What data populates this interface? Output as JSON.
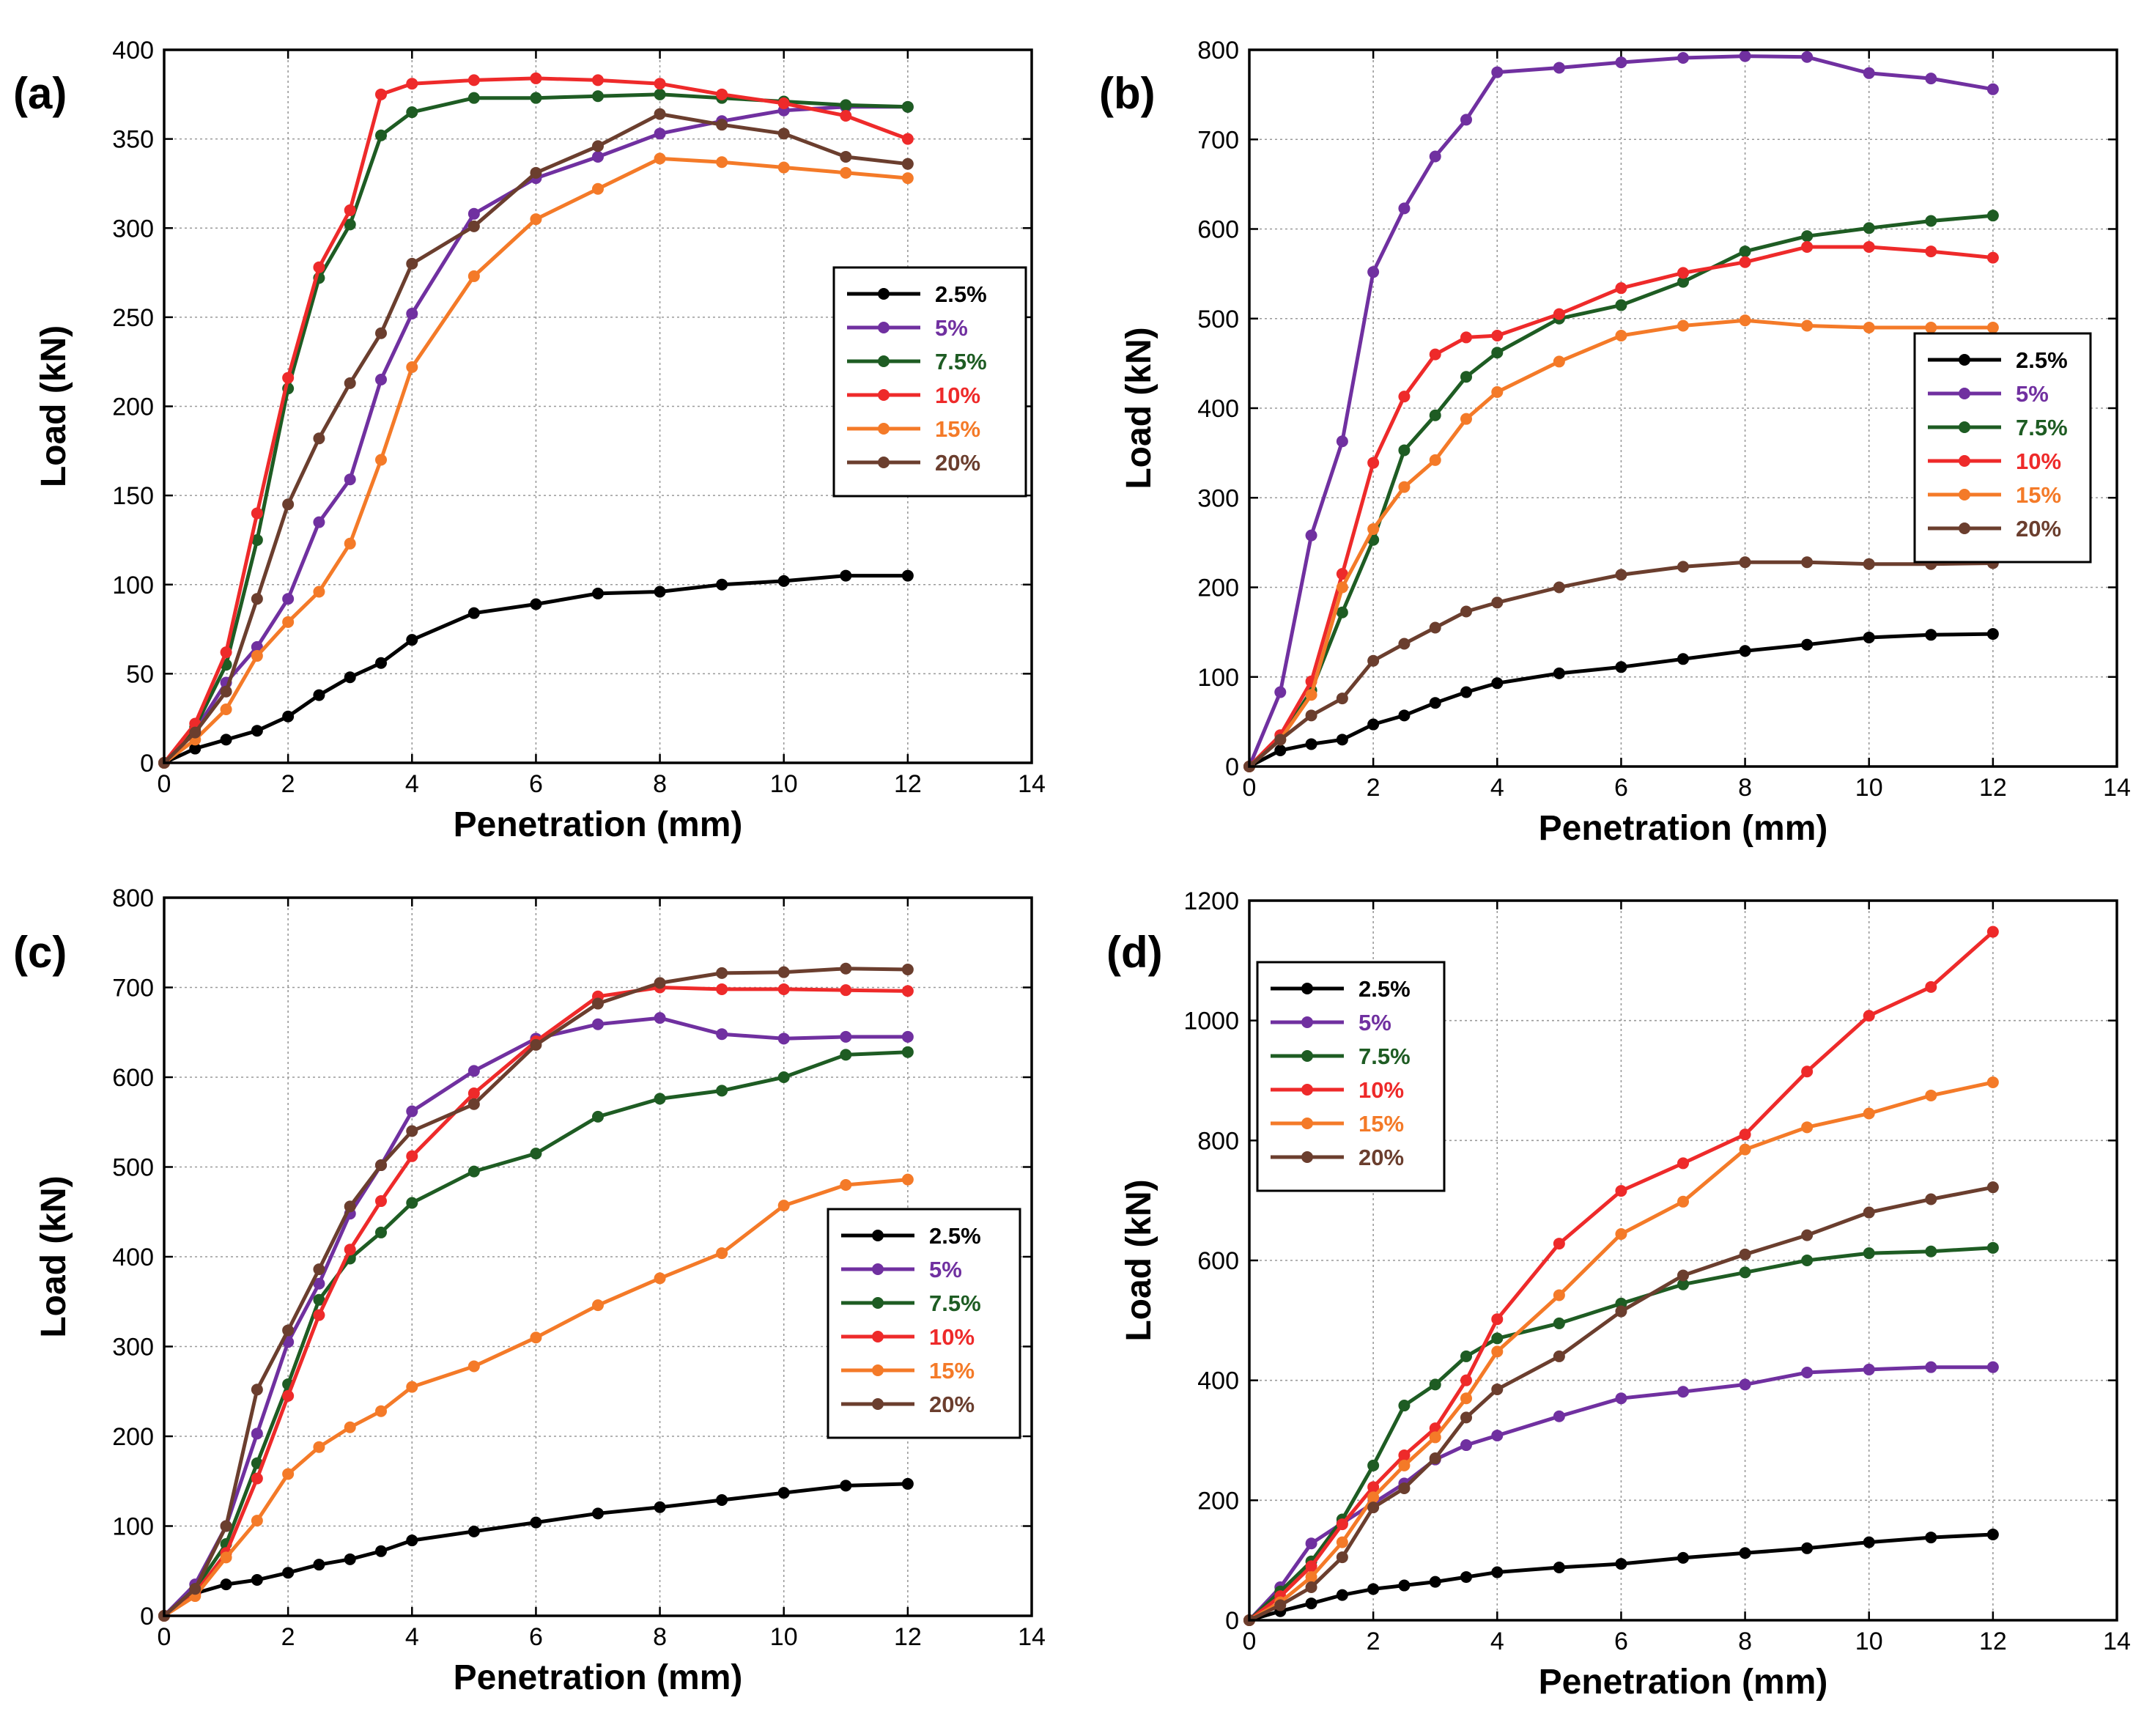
{
  "colors": {
    "2.5%": "#000000",
    "5%": "#7030a0",
    "7.5%": "#1e5c23",
    "10%": "#ee2a2a",
    "15%": "#f47a28",
    "20%": "#6b3e2e"
  },
  "chart_data": [
    {
      "type": "line",
      "panel_label": "(a)",
      "xlabel": "Penetration (mm)",
      "ylabel": "Load (kN)",
      "xlim": [
        0,
        14
      ],
      "ylim": [
        0,
        400
      ],
      "xticks": [
        0,
        2,
        4,
        6,
        8,
        10,
        12,
        14
      ],
      "yticks": [
        0,
        50,
        100,
        150,
        200,
        250,
        300,
        350,
        400
      ],
      "legend_position": "right-middle",
      "series": [
        {
          "name": "2.5%",
          "x": [
            0,
            0.5,
            1,
            1.5,
            2,
            2.5,
            3,
            3.5,
            4,
            5,
            6,
            7,
            8,
            9,
            10,
            11,
            12
          ],
          "y": [
            0,
            8,
            13,
            18,
            26,
            38,
            48,
            56,
            69,
            84,
            89,
            95,
            96,
            100,
            102,
            105,
            105
          ]
        },
        {
          "name": "5%",
          "x": [
            0,
            0.5,
            1,
            1.5,
            2,
            2.5,
            3,
            3.5,
            4,
            5,
            6,
            7,
            8,
            9,
            10,
            11,
            12
          ],
          "y": [
            0,
            18,
            45,
            65,
            92,
            135,
            159,
            215,
            252,
            308,
            328,
            340,
            353,
            360,
            366,
            368,
            368
          ]
        },
        {
          "name": "7.5%",
          "x": [
            0,
            0.5,
            1,
            1.5,
            2,
            2.5,
            3,
            3.5,
            4,
            5,
            6,
            7,
            8,
            9,
            10,
            11,
            12
          ],
          "y": [
            0,
            20,
            55,
            125,
            210,
            272,
            302,
            352,
            365,
            373,
            373,
            374,
            375,
            373,
            371,
            369,
            368
          ]
        },
        {
          "name": "10%",
          "x": [
            0,
            0.5,
            1,
            1.5,
            2,
            2.5,
            3,
            3.5,
            4,
            5,
            6,
            7,
            8,
            9,
            10,
            11,
            12
          ],
          "y": [
            0,
            22,
            62,
            140,
            216,
            278,
            310,
            375,
            381,
            383,
            384,
            383,
            381,
            375,
            370,
            363,
            350
          ]
        },
        {
          "name": "15%",
          "x": [
            0,
            0.5,
            1,
            1.5,
            2,
            2.5,
            3,
            3.5,
            4,
            5,
            6,
            7,
            8,
            9,
            10,
            11,
            12
          ],
          "y": [
            0,
            13,
            30,
            60,
            79,
            96,
            123,
            170,
            222,
            273,
            305,
            322,
            339,
            337,
            334,
            331,
            328
          ]
        },
        {
          "name": "20%",
          "x": [
            0,
            0.5,
            1,
            1.5,
            2,
            2.5,
            3,
            3.5,
            4,
            5,
            6,
            7,
            8,
            9,
            10,
            11,
            12
          ],
          "y": [
            0,
            17,
            40,
            92,
            145,
            182,
            213,
            241,
            280,
            301,
            331,
            346,
            364,
            358,
            353,
            340,
            336
          ]
        }
      ]
    },
    {
      "type": "line",
      "panel_label": "(b)",
      "xlabel": "Penetration (mm)",
      "ylabel": "Load (kN)",
      "xlim": [
        0,
        14
      ],
      "ylim": [
        0,
        800
      ],
      "xticks": [
        0,
        2,
        4,
        6,
        8,
        10,
        12,
        14
      ],
      "yticks": [
        0,
        100,
        200,
        300,
        400,
        500,
        600,
        700,
        800
      ],
      "legend_position": "right-middle",
      "series": [
        {
          "name": "2.5%",
          "x": [
            0,
            0.5,
            1,
            1.5,
            2,
            2.5,
            3,
            3.5,
            4,
            5,
            6,
            7,
            8,
            9,
            10,
            11,
            12
          ],
          "y": [
            0,
            18,
            25,
            30,
            47,
            57,
            71,
            83,
            93,
            104,
            111,
            120,
            129,
            136,
            144,
            147,
            148
          ]
        },
        {
          "name": "5%",
          "x": [
            0,
            0.5,
            1,
            1.5,
            2,
            2.5,
            3,
            3.5,
            4,
            5,
            6,
            7,
            8,
            9,
            10,
            11,
            12
          ],
          "y": [
            0,
            83,
            258,
            363,
            552,
            623,
            681,
            722,
            775,
            780,
            786,
            791,
            793,
            792,
            774,
            768,
            756
          ]
        },
        {
          "name": "7.5%",
          "x": [
            0,
            0.5,
            1,
            1.5,
            2,
            2.5,
            3,
            3.5,
            4,
            5,
            6,
            7,
            8,
            9,
            10,
            11,
            12
          ],
          "y": [
            0,
            30,
            85,
            172,
            253,
            353,
            392,
            435,
            462,
            500,
            515,
            541,
            575,
            592,
            601,
            609,
            615
          ]
        },
        {
          "name": "10%",
          "x": [
            0,
            0.5,
            1,
            1.5,
            2,
            2.5,
            3,
            3.5,
            4,
            5,
            6,
            7,
            8,
            9,
            10,
            11,
            12
          ],
          "y": [
            0,
            35,
            95,
            215,
            339,
            413,
            460,
            479,
            481,
            505,
            534,
            551,
            563,
            580,
            580,
            575,
            568
          ]
        },
        {
          "name": "15%",
          "x": [
            0,
            0.5,
            1,
            1.5,
            2,
            2.5,
            3,
            3.5,
            4,
            5,
            6,
            7,
            8,
            9,
            10,
            11,
            12
          ],
          "y": [
            0,
            30,
            80,
            200,
            265,
            312,
            342,
            388,
            418,
            452,
            481,
            492,
            498,
            492,
            490,
            490,
            490
          ]
        },
        {
          "name": "20%",
          "x": [
            0,
            0.5,
            1,
            1.5,
            2,
            2.5,
            3,
            3.5,
            4,
            5,
            6,
            7,
            8,
            9,
            10,
            11,
            12
          ],
          "y": [
            0,
            30,
            57,
            76,
            118,
            137,
            155,
            173,
            183,
            200,
            214,
            223,
            228,
            228,
            226,
            226,
            227
          ]
        }
      ]
    },
    {
      "type": "line",
      "panel_label": "(c)",
      "xlabel": "Penetration (mm)",
      "ylabel": "Load (kN)",
      "xlim": [
        0,
        14
      ],
      "ylim": [
        0,
        800
      ],
      "xticks": [
        0,
        2,
        4,
        6,
        8,
        10,
        12,
        14
      ],
      "yticks": [
        0,
        100,
        200,
        300,
        400,
        500,
        600,
        700,
        800
      ],
      "legend_position": "right-middle",
      "series": [
        {
          "name": "2.5%",
          "x": [
            0,
            0.5,
            1,
            1.5,
            2,
            2.5,
            3,
            3.5,
            4,
            5,
            6,
            7,
            8,
            9,
            10,
            11,
            12
          ],
          "y": [
            0,
            25,
            35,
            40,
            48,
            57,
            63,
            72,
            84,
            94,
            104,
            114,
            121,
            129,
            137,
            145,
            147
          ]
        },
        {
          "name": "5%",
          "x": [
            0,
            0.5,
            1,
            1.5,
            2,
            2.5,
            3,
            3.5,
            4,
            5,
            6,
            7,
            8,
            9,
            10,
            11,
            12
          ],
          "y": [
            0,
            35,
            100,
            203,
            305,
            370,
            448,
            502,
            562,
            607,
            643,
            659,
            666,
            648,
            643,
            645,
            645
          ]
        },
        {
          "name": "7.5%",
          "x": [
            0,
            0.5,
            1,
            1.5,
            2,
            2.5,
            3,
            3.5,
            4,
            5,
            6,
            7,
            8,
            9,
            10,
            11,
            12
          ],
          "y": [
            0,
            30,
            80,
            170,
            258,
            352,
            398,
            427,
            460,
            495,
            515,
            556,
            576,
            585,
            600,
            625,
            628
          ]
        },
        {
          "name": "10%",
          "x": [
            0,
            0.5,
            1,
            1.5,
            2,
            2.5,
            3,
            3.5,
            4,
            5,
            6,
            7,
            8,
            9,
            10,
            11,
            12
          ],
          "y": [
            0,
            25,
            70,
            153,
            245,
            335,
            408,
            462,
            512,
            582,
            640,
            690,
            700,
            698,
            698,
            697,
            696
          ]
        },
        {
          "name": "15%",
          "x": [
            0,
            0.5,
            1,
            1.5,
            2,
            2.5,
            3,
            3.5,
            4,
            5,
            6,
            7,
            8,
            9,
            10,
            11,
            12
          ],
          "y": [
            0,
            22,
            65,
            106,
            158,
            188,
            210,
            228,
            255,
            278,
            310,
            346,
            376,
            404,
            457,
            480,
            486
          ]
        },
        {
          "name": "20%",
          "x": [
            0,
            0.5,
            1,
            1.5,
            2,
            2.5,
            3,
            3.5,
            4,
            5,
            6,
            7,
            8,
            9,
            10,
            11,
            12
          ],
          "y": [
            0,
            30,
            100,
            252,
            318,
            386,
            456,
            502,
            540,
            570,
            636,
            682,
            705,
            716,
            717,
            721,
            720
          ]
        }
      ]
    },
    {
      "type": "line",
      "panel_label": "(d)",
      "xlabel": "Penetration (mm)",
      "ylabel": "Load (kN)",
      "xlim": [
        0,
        14
      ],
      "ylim": [
        0,
        1200
      ],
      "xticks": [
        0,
        2,
        4,
        6,
        8,
        10,
        12,
        14
      ],
      "yticks": [
        0,
        200,
        400,
        600,
        800,
        1000,
        1200
      ],
      "legend_position": "top-left",
      "series": [
        {
          "name": "2.5%",
          "x": [
            0,
            0.5,
            1,
            1.5,
            2,
            2.5,
            3,
            3.5,
            4,
            5,
            6,
            7,
            8,
            9,
            10,
            11,
            12
          ],
          "y": [
            0,
            15,
            28,
            42,
            52,
            58,
            64,
            72,
            80,
            88,
            94,
            104,
            112,
            120,
            130,
            138,
            143
          ]
        },
        {
          "name": "5%",
          "x": [
            0,
            0.5,
            1,
            1.5,
            2,
            2.5,
            3,
            3.5,
            4,
            5,
            6,
            7,
            8,
            9,
            10,
            11,
            12
          ],
          "y": [
            0,
            55,
            128,
            162,
            195,
            228,
            268,
            292,
            308,
            340,
            370,
            381,
            393,
            413,
            418,
            422,
            422
          ]
        },
        {
          "name": "7.5%",
          "x": [
            0,
            0.5,
            1,
            1.5,
            2,
            2.5,
            3,
            3.5,
            4,
            5,
            6,
            7,
            8,
            9,
            10,
            11,
            12
          ],
          "y": [
            0,
            48,
            98,
            168,
            258,
            358,
            393,
            440,
            470,
            495,
            528,
            560,
            580,
            600,
            612,
            615,
            621
          ]
        },
        {
          "name": "10%",
          "x": [
            0,
            0.5,
            1,
            1.5,
            2,
            2.5,
            3,
            3.5,
            4,
            5,
            6,
            7,
            8,
            9,
            10,
            11,
            12
          ],
          "y": [
            0,
            40,
            90,
            160,
            222,
            275,
            320,
            400,
            502,
            628,
            716,
            762,
            810,
            915,
            1008,
            1056,
            1148
          ]
        },
        {
          "name": "15%",
          "x": [
            0,
            0.5,
            1,
            1.5,
            2,
            2.5,
            3,
            3.5,
            4,
            5,
            6,
            7,
            8,
            9,
            10,
            11,
            12
          ],
          "y": [
            0,
            30,
            72,
            130,
            205,
            258,
            305,
            370,
            448,
            542,
            644,
            698,
            785,
            822,
            845,
            875,
            897
          ]
        },
        {
          "name": "20%",
          "x": [
            0,
            0.5,
            1,
            1.5,
            2,
            2.5,
            3,
            3.5,
            4,
            5,
            6,
            7,
            8,
            9,
            10,
            11,
            12
          ],
          "y": [
            0,
            25,
            55,
            105,
            188,
            220,
            270,
            338,
            385,
            440,
            515,
            575,
            610,
            642,
            680,
            702,
            722
          ]
        }
      ]
    }
  ]
}
